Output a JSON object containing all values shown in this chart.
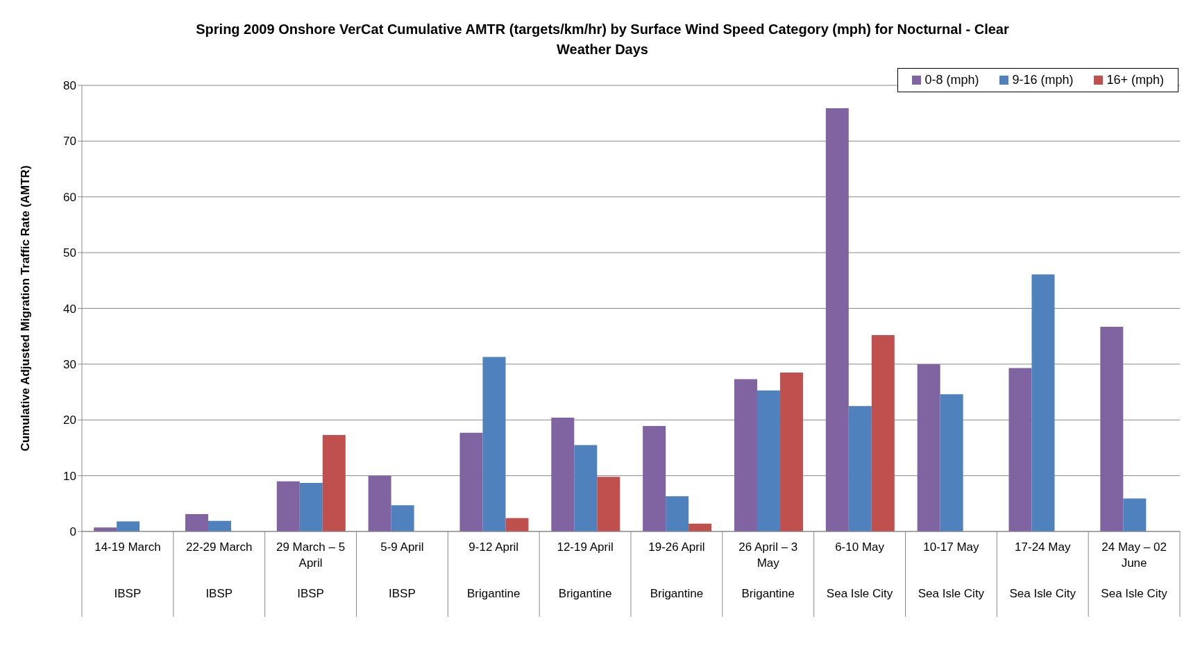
{
  "chart_data": {
    "type": "bar",
    "title": "Spring 2009 Onshore VerCat Cumulative AMTR (targets/km/hr) by Surface Wind Speed Category (mph) for Nocturnal - Clear Weather Days",
    "ylabel": "Cumulative Adjusted Migration Traffic Rate (AMTR)",
    "categories": [
      "14-19 March\nIBSP",
      "22-29 March\nIBSP",
      "29 March – 5 April\nIBSP",
      "5-9 April\nIBSP",
      "9-12 April\nBrigantine",
      "12-19 April\nBrigantine",
      "19-26 April\nBrigantine",
      "26 April – 3 May\nBrigantine",
      "6-10 May\nSea Isle City",
      "10-17 May\nSea Isle City",
      "17-24 May\nSea Isle City",
      "24 May – 02 June\nSea Isle City"
    ],
    "series": [
      {
        "name": "0-8 (mph)",
        "color": "#8064a2",
        "values": [
          0.7,
          3.1,
          9.0,
          10.0,
          17.7,
          20.4,
          18.9,
          27.3,
          75.9,
          30.0,
          29.3,
          36.7
        ]
      },
      {
        "name": "9-16 (mph)",
        "color": "#4f81bd",
        "values": [
          1.8,
          1.9,
          8.7,
          4.7,
          31.3,
          15.5,
          6.3,
          25.3,
          22.5,
          24.6,
          46.1,
          5.9
        ]
      },
      {
        "name": "16+ (mph)",
        "color": "#c0504d",
        "values": [
          null,
          null,
          17.3,
          null,
          2.4,
          9.8,
          1.4,
          28.5,
          35.2,
          null,
          null,
          null
        ]
      }
    ],
    "ylim": [
      0,
      80
    ],
    "yticks": [
      0,
      10,
      20,
      30,
      40,
      50,
      60,
      70,
      80
    ],
    "grid": "y",
    "legend": "top right"
  }
}
